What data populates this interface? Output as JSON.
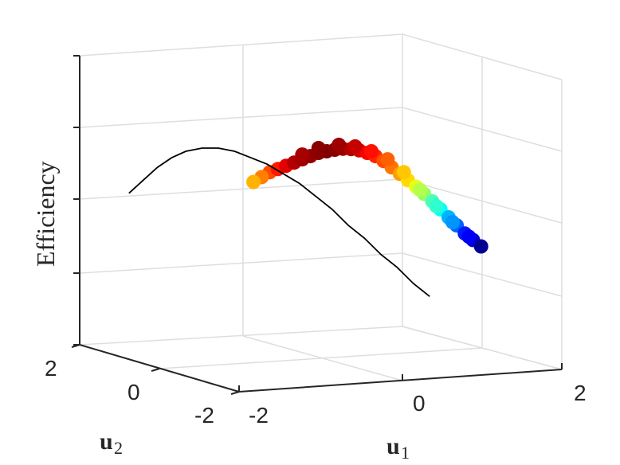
{
  "chart_data": {
    "type": "scatter",
    "title": "",
    "zlabel": "Efficiency",
    "xlabel": {
      "base": "u",
      "sub": "1"
    },
    "ylabel": {
      "base": "u",
      "sub": "2"
    },
    "x_ticks": [
      "-2",
      "0",
      "2"
    ],
    "y_ticks": [
      "2",
      "0",
      "-2"
    ],
    "grid": true,
    "view": "3d",
    "color_scale": "jet",
    "curve": {
      "color": "#000000",
      "points": [
        [
          0.36,
          0.47
        ],
        [
          0.43,
          0.51
        ],
        [
          0.5,
          0.55
        ],
        [
          0.57,
          0.58
        ],
        [
          0.64,
          0.6
        ],
        [
          0.72,
          0.61
        ],
        [
          0.8,
          0.61
        ],
        [
          0.88,
          0.6
        ],
        [
          0.96,
          0.58
        ],
        [
          1.04,
          0.56
        ],
        [
          1.12,
          0.53
        ],
        [
          1.2,
          0.5
        ],
        [
          1.28,
          0.46
        ],
        [
          1.36,
          0.42
        ],
        [
          1.44,
          0.37
        ],
        [
          1.52,
          0.33
        ],
        [
          1.6,
          0.28
        ],
        [
          1.68,
          0.24
        ],
        [
          1.76,
          0.19
        ],
        [
          1.84,
          0.15
        ]
      ]
    },
    "points": [
      {
        "x": 0.7,
        "z": 0.535,
        "c": 0.8
      },
      {
        "x": 0.74,
        "z": 0.545,
        "c": 0.85
      },
      {
        "x": 0.78,
        "z": 0.555,
        "c": 0.9
      },
      {
        "x": 0.82,
        "z": 0.565,
        "c": 0.95
      },
      {
        "x": 0.86,
        "z": 0.575,
        "c": 0.97
      },
      {
        "x": 0.9,
        "z": 0.585,
        "c": 0.98
      },
      {
        "x": 0.94,
        "z": 0.595,
        "c": 0.99
      },
      {
        "x": 0.98,
        "z": 0.6,
        "c": 1.0
      },
      {
        "x": 1.02,
        "z": 0.605,
        "c": 0.99
      },
      {
        "x": 1.06,
        "z": 0.608,
        "c": 0.97
      },
      {
        "x": 1.1,
        "z": 0.607,
        "c": 0.95
      },
      {
        "x": 1.14,
        "z": 0.603,
        "c": 0.92
      },
      {
        "x": 1.18,
        "z": 0.595,
        "c": 0.88
      },
      {
        "x": 1.22,
        "z": 0.585,
        "c": 0.84
      },
      {
        "x": 1.26,
        "z": 0.57,
        "c": 0.8
      },
      {
        "x": 1.3,
        "z": 0.55,
        "c": 0.76
      },
      {
        "x": 1.34,
        "z": 0.53,
        "c": 0.72
      },
      {
        "x": 1.38,
        "z": 0.51,
        "c": 0.66
      },
      {
        "x": 1.42,
        "z": 0.49,
        "c": 0.6
      },
      {
        "x": 1.46,
        "z": 0.468,
        "c": 0.52
      },
      {
        "x": 1.5,
        "z": 0.445,
        "c": 0.45
      },
      {
        "x": 1.54,
        "z": 0.42,
        "c": 0.38
      },
      {
        "x": 1.58,
        "z": 0.395,
        "c": 0.3
      },
      {
        "x": 1.62,
        "z": 0.37,
        "c": 0.22
      },
      {
        "x": 1.66,
        "z": 0.345,
        "c": 0.15
      },
      {
        "x": 1.7,
        "z": 0.325,
        "c": 0.08
      },
      {
        "x": 1.74,
        "z": 0.305,
        "c": 0.02
      },
      {
        "x": 0.66,
        "z": 0.52,
        "c": 0.75
      },
      {
        "x": 0.62,
        "z": 0.505,
        "c": 0.7
      },
      {
        "x": 0.86,
        "z": 0.59,
        "c": 0.96
      },
      {
        "x": 0.94,
        "z": 0.61,
        "c": 0.99
      },
      {
        "x": 1.04,
        "z": 0.62,
        "c": 0.97
      },
      {
        "x": 1.12,
        "z": 0.615,
        "c": 0.93
      },
      {
        "x": 1.2,
        "z": 0.6,
        "c": 0.86
      },
      {
        "x": 1.28,
        "z": 0.575,
        "c": 0.78
      },
      {
        "x": 1.36,
        "z": 0.535,
        "c": 0.68
      },
      {
        "x": 1.44,
        "z": 0.48,
        "c": 0.55
      },
      {
        "x": 1.52,
        "z": 0.43,
        "c": 0.42
      },
      {
        "x": 1.6,
        "z": 0.38,
        "c": 0.27
      },
      {
        "x": 1.68,
        "z": 0.335,
        "c": 0.12
      }
    ]
  },
  "colors": {
    "grid": "#dedede",
    "axis": "#262626",
    "background": "#ffffff"
  }
}
